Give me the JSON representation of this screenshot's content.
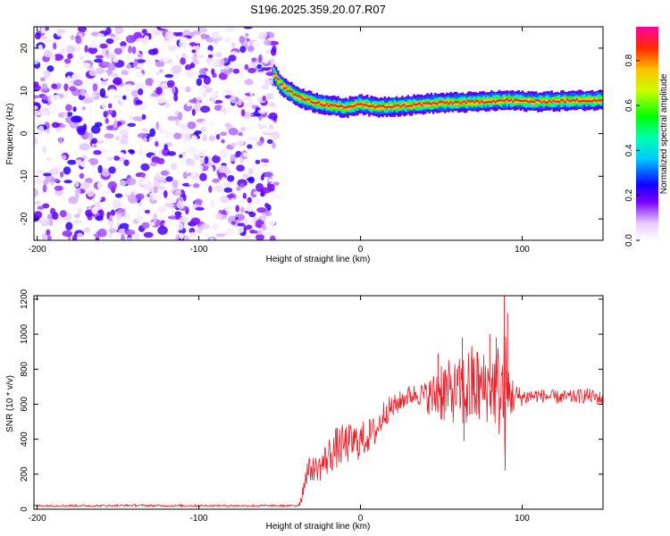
{
  "figure": {
    "title": "S196.2025.359.20.07.R07"
  },
  "chart_data": [
    {
      "type": "heatmap",
      "title": "",
      "xlabel": "Height of straight line (km)",
      "ylabel": "Frequency (Hz)",
      "xlim": [
        -202,
        150
      ],
      "ylim": [
        -25,
        25
      ],
      "x_ticks": [
        -200,
        -100,
        0,
        100
      ],
      "y_ticks": [
        -20,
        -10,
        0,
        10,
        20
      ],
      "noise_region": {
        "x_range": [
          -202,
          -52
        ],
        "y_range": [
          -25,
          25
        ],
        "amplitude_range": [
          0.0,
          0.25
        ]
      },
      "signal_track": {
        "x": [
          -54,
          -50,
          -45,
          -40,
          -35,
          -30,
          -25,
          -20,
          -15,
          -10,
          -5,
          0,
          5,
          10,
          20,
          30,
          40,
          50,
          60,
          70,
          80,
          90,
          100,
          110,
          120,
          130,
          140,
          150
        ],
        "y": [
          14,
          11.5,
          10,
          8.8,
          8,
          7.4,
          7,
          6.6,
          6.3,
          6,
          6.5,
          7,
          6.4,
          6.2,
          6.4,
          6.6,
          7,
          7.2,
          7.3,
          7.4,
          7.6,
          7.8,
          7.6,
          7.5,
          7.6,
          7.7,
          7.8,
          7.8
        ],
        "peak_amplitude": 0.95
      },
      "colorbar": {
        "label": "Normalized spectral amplitude",
        "range": [
          0.0,
          0.95
        ],
        "ticks": [
          0.0,
          0.2,
          0.4,
          0.6,
          0.8
        ],
        "tick_labels": [
          "0.0",
          "0.2",
          "0.4",
          "0.6",
          "0.8"
        ]
      },
      "grid": false
    },
    {
      "type": "line",
      "title": "",
      "xlabel": "Height of straight line (km)",
      "ylabel": "SNR (10 * v/v)",
      "xlim": [
        -202,
        150
      ],
      "ylim": [
        0,
        1220
      ],
      "x_ticks": [
        -200,
        -100,
        0,
        100
      ],
      "y_ticks": [
        0,
        200,
        400,
        600,
        800,
        1000,
        1200
      ],
      "series": [
        {
          "color": "#e8202a",
          "x": [
            -202,
            -180,
            -160,
            -140,
            -120,
            -100,
            -80,
            -60,
            -45,
            -40,
            -38,
            -36,
            -35,
            -33,
            -30,
            -25,
            -20,
            -15,
            -10,
            -5,
            0,
            5,
            10,
            15,
            20,
            25,
            30,
            35,
            40,
            45,
            50,
            55,
            60,
            65,
            70,
            75,
            80,
            85,
            88,
            90,
            92,
            95,
            100,
            110,
            120,
            130,
            140,
            150
          ],
          "y": [
            20,
            20,
            20,
            22,
            20,
            20,
            20,
            20,
            20,
            20,
            30,
            80,
            150,
            220,
            230,
            240,
            300,
            350,
            370,
            380,
            390,
            420,
            450,
            560,
            580,
            620,
            650,
            660,
            650,
            640,
            690,
            660,
            680,
            670,
            700,
            690,
            700,
            700,
            650,
            600,
            660,
            640,
            640,
            650,
            640,
            640,
            650,
            630
          ],
          "noise_spread": [
            6,
            6,
            6,
            6,
            6,
            6,
            6,
            6,
            6,
            6,
            20,
            40,
            60,
            70,
            70,
            80,
            110,
            120,
            120,
            110,
            110,
            100,
            90,
            80,
            70,
            60,
            60,
            60,
            80,
            140,
            200,
            190,
            170,
            250,
            260,
            220,
            200,
            260,
            400,
            420,
            180,
            90,
            50,
            40,
            40,
            40,
            45,
            40
          ]
        }
      ],
      "spikes": [
        {
          "x": 48,
          "y": 890
        },
        {
          "x": 63,
          "y": 980
        },
        {
          "x": 80,
          "y": 1000
        },
        {
          "x": 84,
          "y": 980
        },
        {
          "x": 89,
          "y": 1225
        },
        {
          "x": 91,
          "y": 1120
        },
        {
          "x": 89.5,
          "y": 250
        },
        {
          "x": 64,
          "y": 390
        }
      ],
      "grid": false
    }
  ]
}
